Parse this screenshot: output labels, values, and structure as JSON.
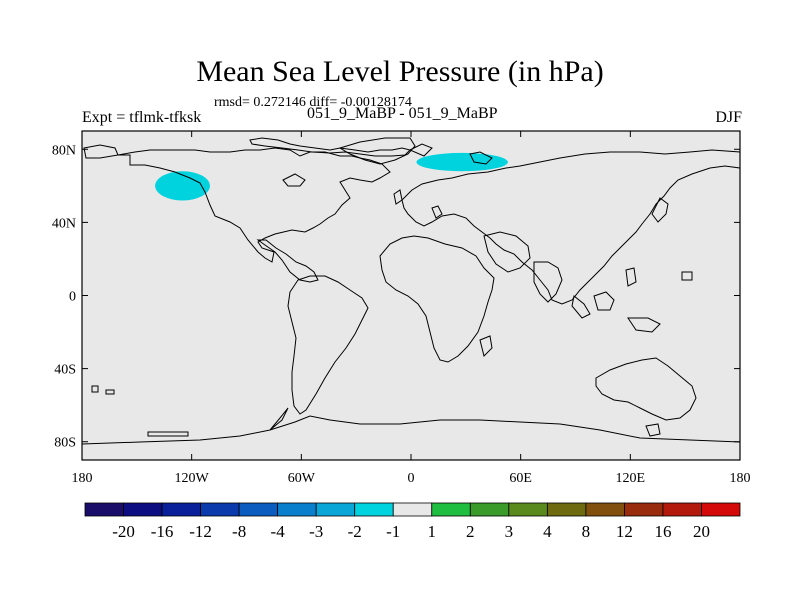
{
  "chart_data": {
    "type": "heatmap",
    "title": "Mean Sea Level Pressure (in hPa)",
    "stats_label": "rmsd= 0.272146 diff= -0.00128174",
    "experiment_label": "Expt = tflmk-tfksk",
    "comparison_label": "051_9_MaBP - 051_9_MaBP",
    "season": "DJF",
    "projection": "cylindrical-equidistant",
    "xlim": [
      -180,
      180
    ],
    "ylim": [
      -90,
      90
    ],
    "x_ticks": [
      {
        "value": -180,
        "label": "180"
      },
      {
        "value": -120,
        "label": "120W"
      },
      {
        "value": -60,
        "label": "60W"
      },
      {
        "value": 0,
        "label": "0"
      },
      {
        "value": 60,
        "label": "60E"
      },
      {
        "value": 120,
        "label": "120E"
      },
      {
        "value": 180,
        "label": "180"
      }
    ],
    "y_ticks": [
      {
        "value": 80,
        "label": "80N"
      },
      {
        "value": 40,
        "label": "40N"
      },
      {
        "value": 0,
        "label": "0"
      },
      {
        "value": -40,
        "label": "40S"
      },
      {
        "value": -80,
        "label": "80S"
      }
    ],
    "background_color": "#e8e8e8",
    "anomalies": [
      {
        "name": "north-pacific-low",
        "center_lon": -125,
        "center_lat": 60,
        "lon_radius": 15,
        "lat_radius": 8,
        "value_range": [
          -2,
          -1
        ],
        "color": "#00d2de"
      },
      {
        "name": "barents-kara-low",
        "center_lon": 28,
        "center_lat": 73,
        "lon_radius": 25,
        "lat_radius": 5,
        "value_range": [
          -2,
          -1
        ],
        "color": "#00d2de"
      }
    ],
    "colorbar": {
      "labels": [
        "-20",
        "-16",
        "-12",
        "-8",
        "-4",
        "-3",
        "-2",
        "-1",
        "1",
        "2",
        "3",
        "4",
        "8",
        "12",
        "16",
        "20"
      ],
      "colors": [
        "#1a0d6a",
        "#0d0d82",
        "#0a209a",
        "#0a3aac",
        "#0a5cbe",
        "#0a80cc",
        "#0aa6d8",
        "#00d2de",
        "#e8e8e8",
        "#20be40",
        "#3a9a2a",
        "#5a8a1e",
        "#6e6a10",
        "#80500c",
        "#982c0c",
        "#b41a0c",
        "#d40a0a"
      ]
    }
  }
}
